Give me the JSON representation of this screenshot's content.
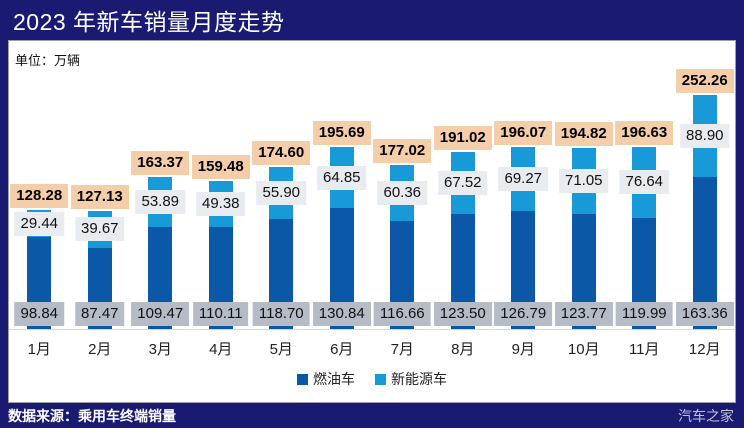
{
  "header": {
    "title": "2023 年新车销量月度走势",
    "unit": "单位：万辆"
  },
  "footer": {
    "source": "数据来源：乘用车终端销量",
    "watermark": "汽车之家"
  },
  "colors": {
    "frame_navy": "#1a1a73",
    "fuel_bar": "#0b57a8",
    "nev_bar": "#189ad8",
    "total_label_bg": "#f4cda9",
    "nev_label_bg": "#e8ebef",
    "fuel_label_bg": "#b5bcc6"
  },
  "chart_data": {
    "type": "bar",
    "stacked": true,
    "title": "2023 年新车销量月度走势",
    "unit": "万辆",
    "xlabel": "",
    "ylabel": "",
    "grid": false,
    "legend_position": "bottom",
    "ylim": [
      0,
      260
    ],
    "categories": [
      "1月",
      "2月",
      "3月",
      "4月",
      "5月",
      "6月",
      "7月",
      "8月",
      "9月",
      "10月",
      "11月",
      "12月"
    ],
    "series": [
      {
        "name": "燃油车",
        "color": "#0b57a8",
        "values": [
          98.84,
          87.47,
          109.47,
          110.11,
          118.7,
          130.84,
          116.66,
          123.5,
          126.79,
          123.77,
          119.99,
          163.36
        ]
      },
      {
        "name": "新能源车",
        "color": "#189ad8",
        "values": [
          29.44,
          39.67,
          53.89,
          49.38,
          55.9,
          64.85,
          60.36,
          67.52,
          69.27,
          71.05,
          76.64,
          88.9
        ]
      }
    ],
    "totals": [
      128.28,
      127.13,
      163.37,
      159.48,
      174.6,
      195.69,
      177.02,
      191.02,
      196.07,
      194.82,
      196.63,
      252.26
    ]
  }
}
